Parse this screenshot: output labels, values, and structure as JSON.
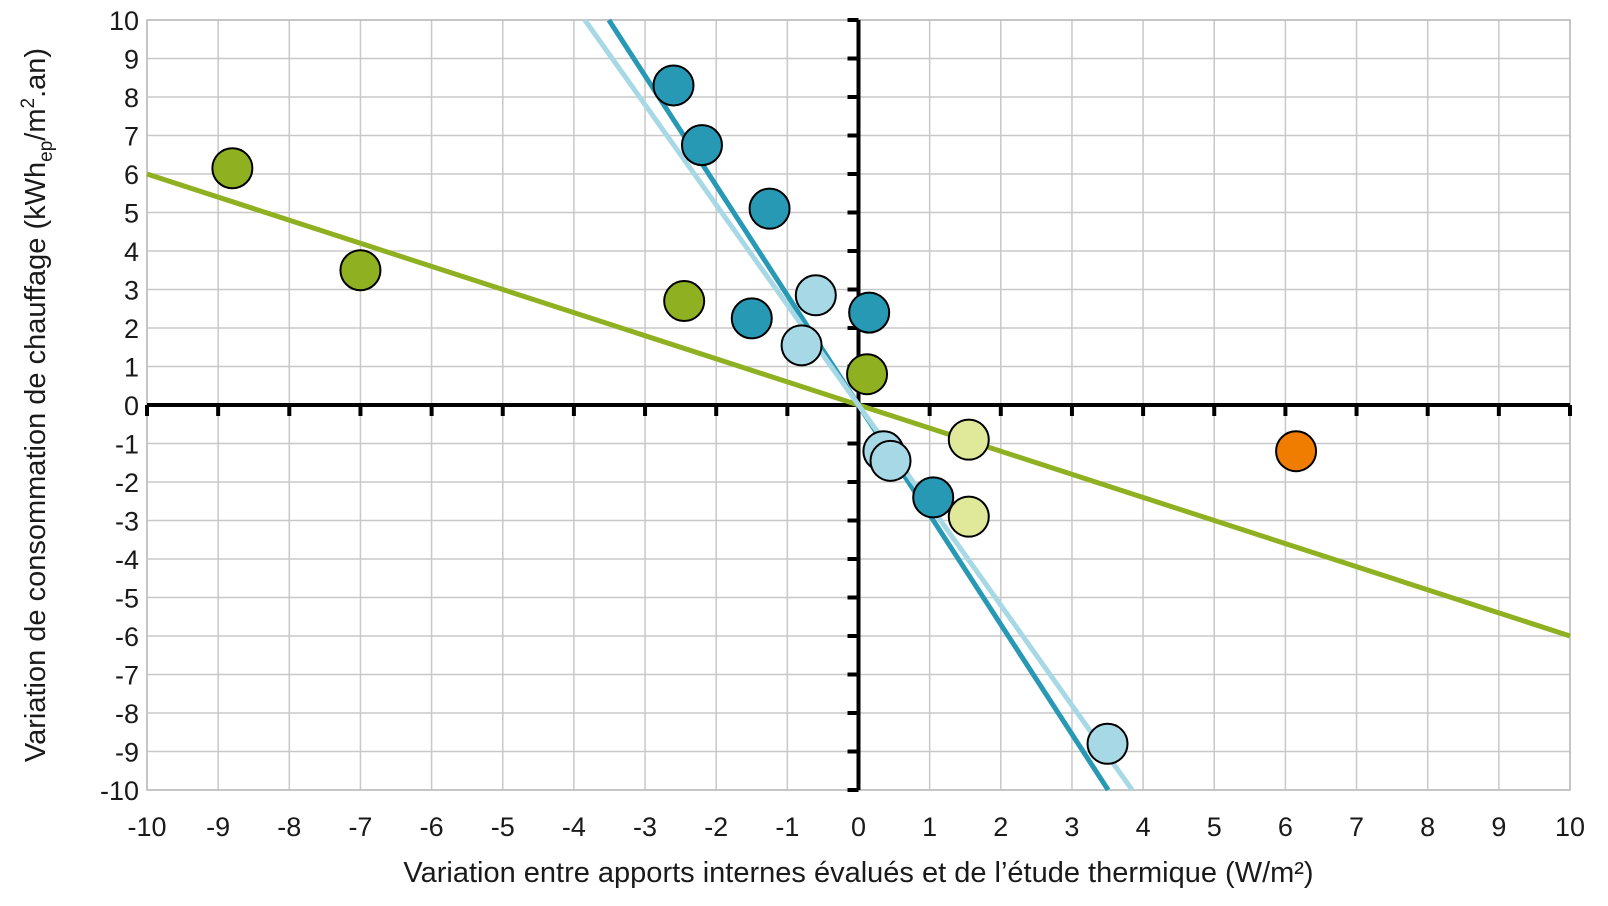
{
  "chart_data": {
    "type": "scatter",
    "xlabel": "Variation entre apports internes évalués et de l’étude thermique (W/m²)",
    "ylabel": {
      "prefix": "Variation de consommation de chauffage (kWh",
      "subscript": "ep",
      "middle": "/m",
      "superscript": "2",
      "suffix": ".an)"
    },
    "xlim": [
      -10,
      10
    ],
    "ylim": [
      -10,
      10
    ],
    "x_ticks": [
      "-10",
      "-9",
      "-8",
      "-7",
      "-6",
      "-5",
      "-4",
      "-3",
      "-2",
      "-1",
      "0",
      "1",
      "2",
      "3",
      "4",
      "5",
      "6",
      "7",
      "8",
      "9",
      "10"
    ],
    "y_ticks": [
      "10",
      "9",
      "8",
      "7",
      "6",
      "5",
      "4",
      "3",
      "2",
      "1",
      "0",
      "-1",
      "-2",
      "-3",
      "-4",
      "-5",
      "-6",
      "-7",
      "-8",
      "-9",
      "-10"
    ],
    "grid": true,
    "series": [
      {
        "color": "#8fb121",
        "points": [
          [
            -8.8,
            6.15
          ],
          [
            -7.0,
            3.5
          ],
          [
            -2.45,
            2.7
          ],
          [
            0.12,
            0.8
          ]
        ]
      },
      {
        "color": "#e0e89a",
        "points": [
          [
            1.55,
            -0.9
          ],
          [
            1.55,
            -2.9
          ]
        ]
      },
      {
        "color": "#2899b5",
        "points": [
          [
            -2.6,
            8.3
          ],
          [
            -2.2,
            6.75
          ],
          [
            -1.25,
            5.1
          ],
          [
            -1.5,
            2.25
          ],
          [
            0.15,
            2.4
          ],
          [
            1.05,
            -2.4
          ]
        ]
      },
      {
        "color": "#a7d8e6",
        "points": [
          [
            -0.6,
            2.85
          ],
          [
            -0.8,
            1.55
          ],
          [
            0.35,
            -1.2
          ],
          [
            0.45,
            -1.45
          ],
          [
            3.5,
            -8.8
          ]
        ]
      },
      {
        "color": "#f07c00",
        "points": [
          [
            6.15,
            -1.2
          ]
        ]
      }
    ],
    "trendlines": [
      {
        "color": "#8fb121",
        "slope": -0.6
      },
      {
        "color": "#2899b5",
        "slope": -2.85
      },
      {
        "color": "#a7d8e6",
        "slope": -2.6
      }
    ]
  }
}
